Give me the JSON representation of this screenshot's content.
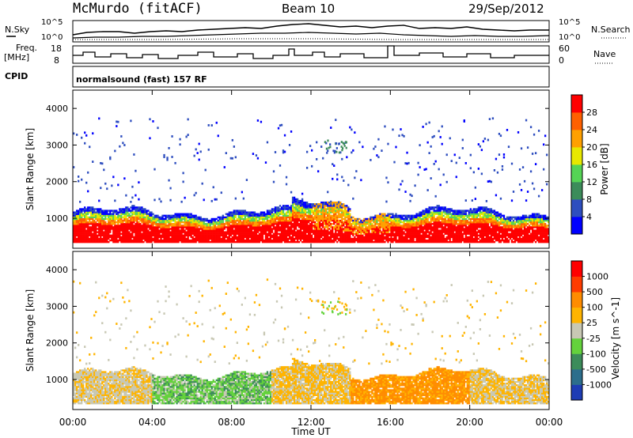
{
  "header": {
    "station": "McMurdo (fitACF)",
    "beam": "Beam 10",
    "date": "29/Sep/2012"
  },
  "summary_panels": {
    "nsky_label": "N.Sky",
    "nsky_ticks": [
      "10^5",
      "10^0"
    ],
    "nsearch_label": "N.Search",
    "nsearch_ticks": [
      "10^5",
      "10^0"
    ],
    "freq_label": [
      "Freq.",
      "[MHz]"
    ],
    "freq_ticks": [
      "18",
      "8"
    ],
    "nave_label": "Nave",
    "nave_ticks": [
      "60",
      "0"
    ],
    "cpid_label": "CPID",
    "cpid_text": "normalsound (fast) 157 RF"
  },
  "x_axis": {
    "label": "Time UT",
    "ticks": [
      "00:00",
      "04:00",
      "08:00",
      "12:00",
      "16:00",
      "20:00",
      "00:00"
    ]
  },
  "chart_data": [
    {
      "type": "heatmap",
      "title": "",
      "quantity": "Power",
      "xlabel": "Time UT",
      "ylabel": "Slant Range [km]",
      "ylim": [
        180,
        4500
      ],
      "y_ticks": [
        "1000",
        "2000",
        "3000",
        "4000"
      ],
      "colorbar_label": "Power [dB]",
      "colorbar_ticks": [
        "4",
        "8",
        "12",
        "16",
        "20",
        "24",
        "28"
      ],
      "colors": [
        "#0000ff",
        "#2e4ebf",
        "#3c8c5a",
        "#55d455",
        "#e8e800",
        "#ffa000",
        "#ff6000",
        "#ff0000"
      ],
      "description_of_main_band_km": [
        400,
        1200
      ]
    },
    {
      "type": "heatmap",
      "title": "",
      "quantity": "Velocity",
      "xlabel": "Time UT",
      "ylabel": "Slant Range [km]",
      "ylim": [
        180,
        4500
      ],
      "y_ticks": [
        "1000",
        "2000",
        "3000",
        "4000"
      ],
      "colorbar_label": "Velocity [m s^-1]",
      "colorbar_ticks": [
        "1000",
        "500",
        "100",
        "25",
        "-25",
        "-100",
        "-500",
        "-1000"
      ],
      "colors": [
        "#1e3cb4",
        "#2c6e8c",
        "#3c8c5a",
        "#64d23c",
        "#c8c8b4",
        "#ffb400",
        "#ff8c00",
        "#ff3c00",
        "#ff0000"
      ]
    }
  ]
}
